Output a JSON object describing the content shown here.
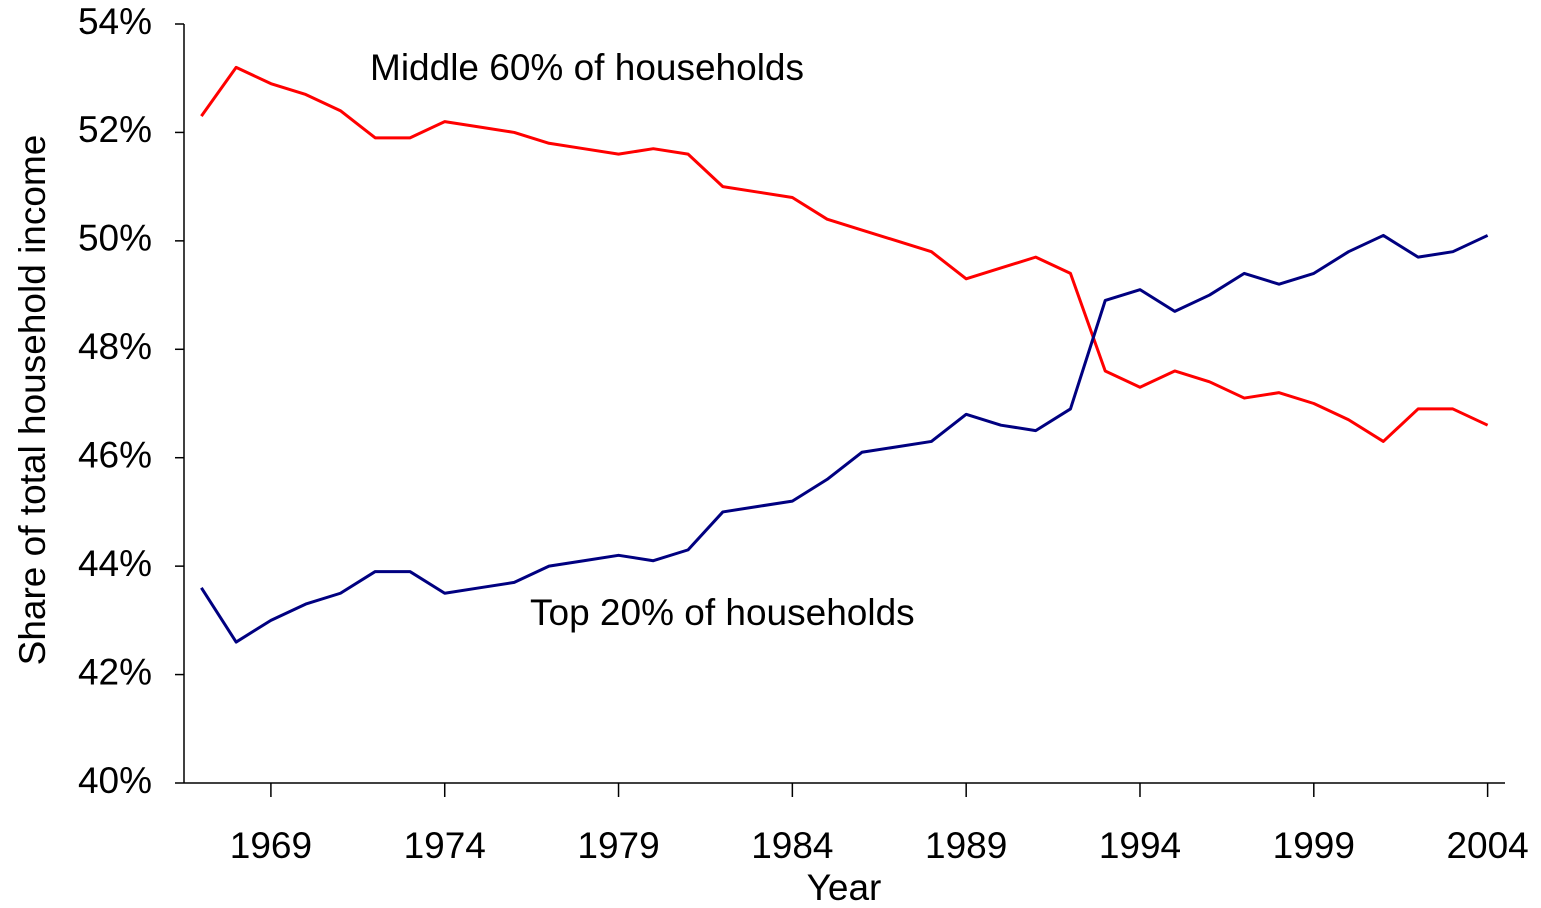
{
  "chart_data": {
    "type": "line",
    "x_label": "Year",
    "y_label": "Share of total household income",
    "x": [
      1967,
      1968,
      1969,
      1970,
      1971,
      1972,
      1973,
      1974,
      1975,
      1976,
      1977,
      1978,
      1979,
      1980,
      1981,
      1982,
      1983,
      1984,
      1985,
      1986,
      1987,
      1988,
      1989,
      1990,
      1991,
      1992,
      1993,
      1994,
      1995,
      1996,
      1997,
      1998,
      1999,
      2000,
      2001,
      2002,
      2003,
      2004
    ],
    "series": [
      {
        "name": "Middle 60% of households",
        "color": "#ff0000",
        "values": [
          52.3,
          53.2,
          52.9,
          52.7,
          52.4,
          51.9,
          51.9,
          52.2,
          52.1,
          52.0,
          51.8,
          51.7,
          51.6,
          51.7,
          51.6,
          51.0,
          50.9,
          50.8,
          50.4,
          50.2,
          50.0,
          49.8,
          49.3,
          49.5,
          49.7,
          49.4,
          47.6,
          47.3,
          47.6,
          47.4,
          47.1,
          47.2,
          47.0,
          46.7,
          46.3,
          46.9,
          46.9,
          46.6
        ]
      },
      {
        "name": "Top 20% of households",
        "color": "#000080",
        "values": [
          43.6,
          42.6,
          43.0,
          43.3,
          43.5,
          43.9,
          43.9,
          43.5,
          43.6,
          43.7,
          44.0,
          44.1,
          44.2,
          44.1,
          44.3,
          45.0,
          45.1,
          45.2,
          45.6,
          46.1,
          46.2,
          46.3,
          46.8,
          46.6,
          46.5,
          46.9,
          48.9,
          49.1,
          48.7,
          49.0,
          49.4,
          49.2,
          49.4,
          49.8,
          50.1,
          49.7,
          49.8,
          50.1
        ]
      }
    ],
    "xlim": [
      1966.5,
      2004.5
    ],
    "xticks": [
      1969,
      1974,
      1979,
      1984,
      1989,
      1994,
      1999,
      2004
    ],
    "ylim": [
      40,
      54
    ],
    "yticks": [
      {
        "value": 40,
        "label": "40%"
      },
      {
        "value": 42,
        "label": "42%"
      },
      {
        "value": 44,
        "label": "44%"
      },
      {
        "value": 46,
        "label": "46%"
      },
      {
        "value": 48,
        "label": "48%"
      },
      {
        "value": 50,
        "label": "50%"
      },
      {
        "value": 52,
        "label": "52%"
      },
      {
        "value": 54,
        "label": "54%"
      }
    ],
    "grid": false
  }
}
